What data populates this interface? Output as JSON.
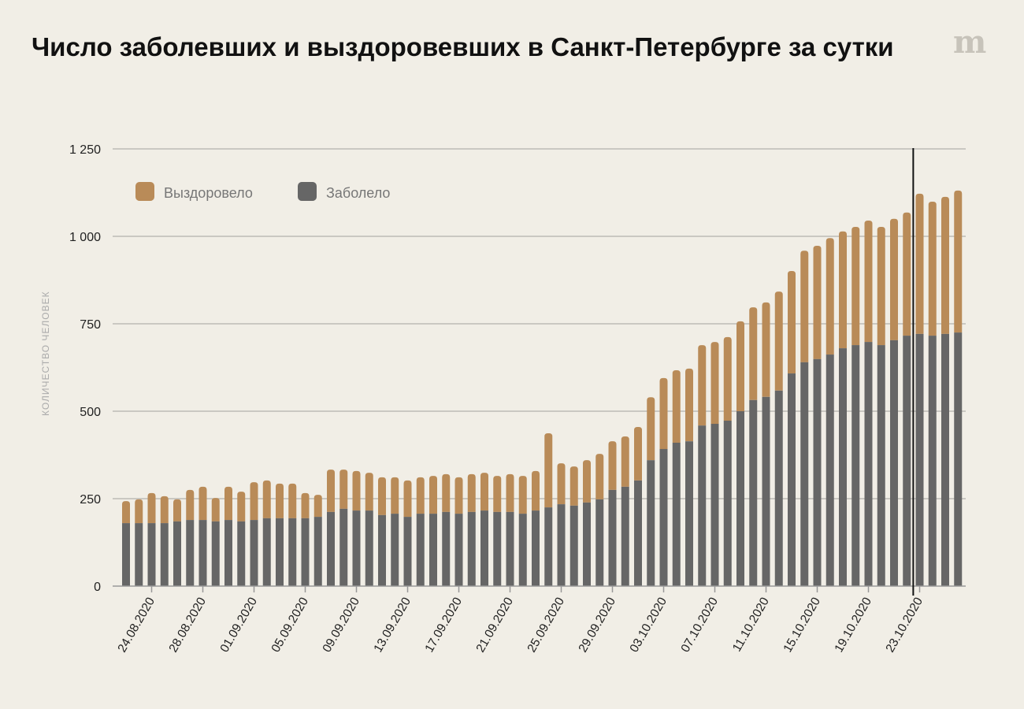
{
  "title": "Число заболевших и выздоровевших в Санкт-Петербурге за сутки",
  "logo_text": "m",
  "chart_data": {
    "type": "bar",
    "stacked": true,
    "title": "Число заболевших и выздоровевших в Санкт-Петербурге за сутки",
    "xlabel": "",
    "ylabel": "КОЛИЧЕСТВО ЧЕЛОВЕК",
    "ylim": [
      0,
      1250
    ],
    "yticks": [
      0,
      250,
      500,
      750,
      1000,
      1250
    ],
    "ytick_labels": [
      "0",
      "250",
      "500",
      "750",
      "1 000",
      "1 250"
    ],
    "grid": true,
    "legend_position": "top-left",
    "colors": {
      "Заболело": "#666666",
      "Выздоровело": "#b98b58"
    },
    "legend": [
      "Выздоровело",
      "Заболело"
    ],
    "categories": [
      "22.08.2020",
      "23.08.2020",
      "24.08.2020",
      "25.08.2020",
      "26.08.2020",
      "27.08.2020",
      "28.08.2020",
      "29.08.2020",
      "30.08.2020",
      "31.08.2020",
      "01.09.2020",
      "02.09.2020",
      "03.09.2020",
      "04.09.2020",
      "05.09.2020",
      "06.09.2020",
      "07.09.2020",
      "08.09.2020",
      "09.09.2020",
      "10.09.2020",
      "11.09.2020",
      "12.09.2020",
      "13.09.2020",
      "14.09.2020",
      "15.09.2020",
      "16.09.2020",
      "17.09.2020",
      "18.09.2020",
      "19.09.2020",
      "20.09.2020",
      "21.09.2020",
      "22.09.2020",
      "23.09.2020",
      "24.09.2020",
      "25.09.2020",
      "26.09.2020",
      "27.09.2020",
      "28.09.2020",
      "29.09.2020",
      "30.09.2020",
      "01.10.2020",
      "02.10.2020",
      "03.10.2020",
      "04.10.2020",
      "05.10.2020",
      "06.10.2020",
      "07.10.2020",
      "08.10.2020",
      "09.10.2020",
      "10.10.2020",
      "11.10.2020",
      "12.10.2020",
      "13.10.2020",
      "14.10.2020",
      "15.10.2020",
      "16.10.2020",
      "17.10.2020",
      "18.10.2020",
      "19.10.2020",
      "20.10.2020",
      "21.10.2020",
      "22.10.2020",
      "23.10.2020",
      "24.10.2020",
      "25.10.2020",
      "26.10.2020"
    ],
    "xtick_labels": [
      "24.08.2020",
      "28.08.2020",
      "01.09.2020",
      "05.09.2020",
      "09.09.2020",
      "13.09.2020",
      "17.09.2020",
      "21.09.2020",
      "25.09.2020",
      "29.09.2020",
      "03.10.2020",
      "07.10.2020",
      "11.10.2020",
      "15.10.2020",
      "19.10.2020",
      "23.10.2020"
    ],
    "marker_line_between": [
      "22.10.2020",
      "23.10.2020"
    ],
    "series": [
      {
        "name": "Заболело",
        "values": [
          180,
          180,
          180,
          180,
          185,
          189,
          189,
          185,
          189,
          185,
          189,
          194,
          194,
          194,
          194,
          198,
          212,
          221,
          216,
          216,
          203,
          207,
          198,
          207,
          207,
          212,
          207,
          212,
          216,
          212,
          212,
          207,
          216,
          225,
          234,
          230,
          239,
          248,
          275,
          284,
          302,
          360,
          392,
          410,
          414,
          459,
          464,
          473,
          500,
          532,
          541,
          559,
          608,
          640,
          649,
          662,
          680,
          689,
          698,
          689,
          703,
          716,
          721,
          716,
          721,
          725
        ]
      },
      {
        "name": "Выздоровело",
        "values": [
          63,
          68,
          86,
          77,
          63,
          86,
          95,
          67,
          95,
          85,
          108,
          108,
          99,
          99,
          72,
          63,
          121,
          112,
          113,
          108,
          108,
          104,
          104,
          104,
          108,
          108,
          104,
          108,
          108,
          103,
          108,
          108,
          113,
          212,
          117,
          112,
          121,
          130,
          139,
          144,
          153,
          180,
          203,
          207,
          208,
          230,
          234,
          239,
          257,
          265,
          270,
          283,
          293,
          319,
          324,
          333,
          334,
          338,
          347,
          338,
          347,
          352,
          401,
          383,
          392,
          406
        ]
      }
    ]
  }
}
